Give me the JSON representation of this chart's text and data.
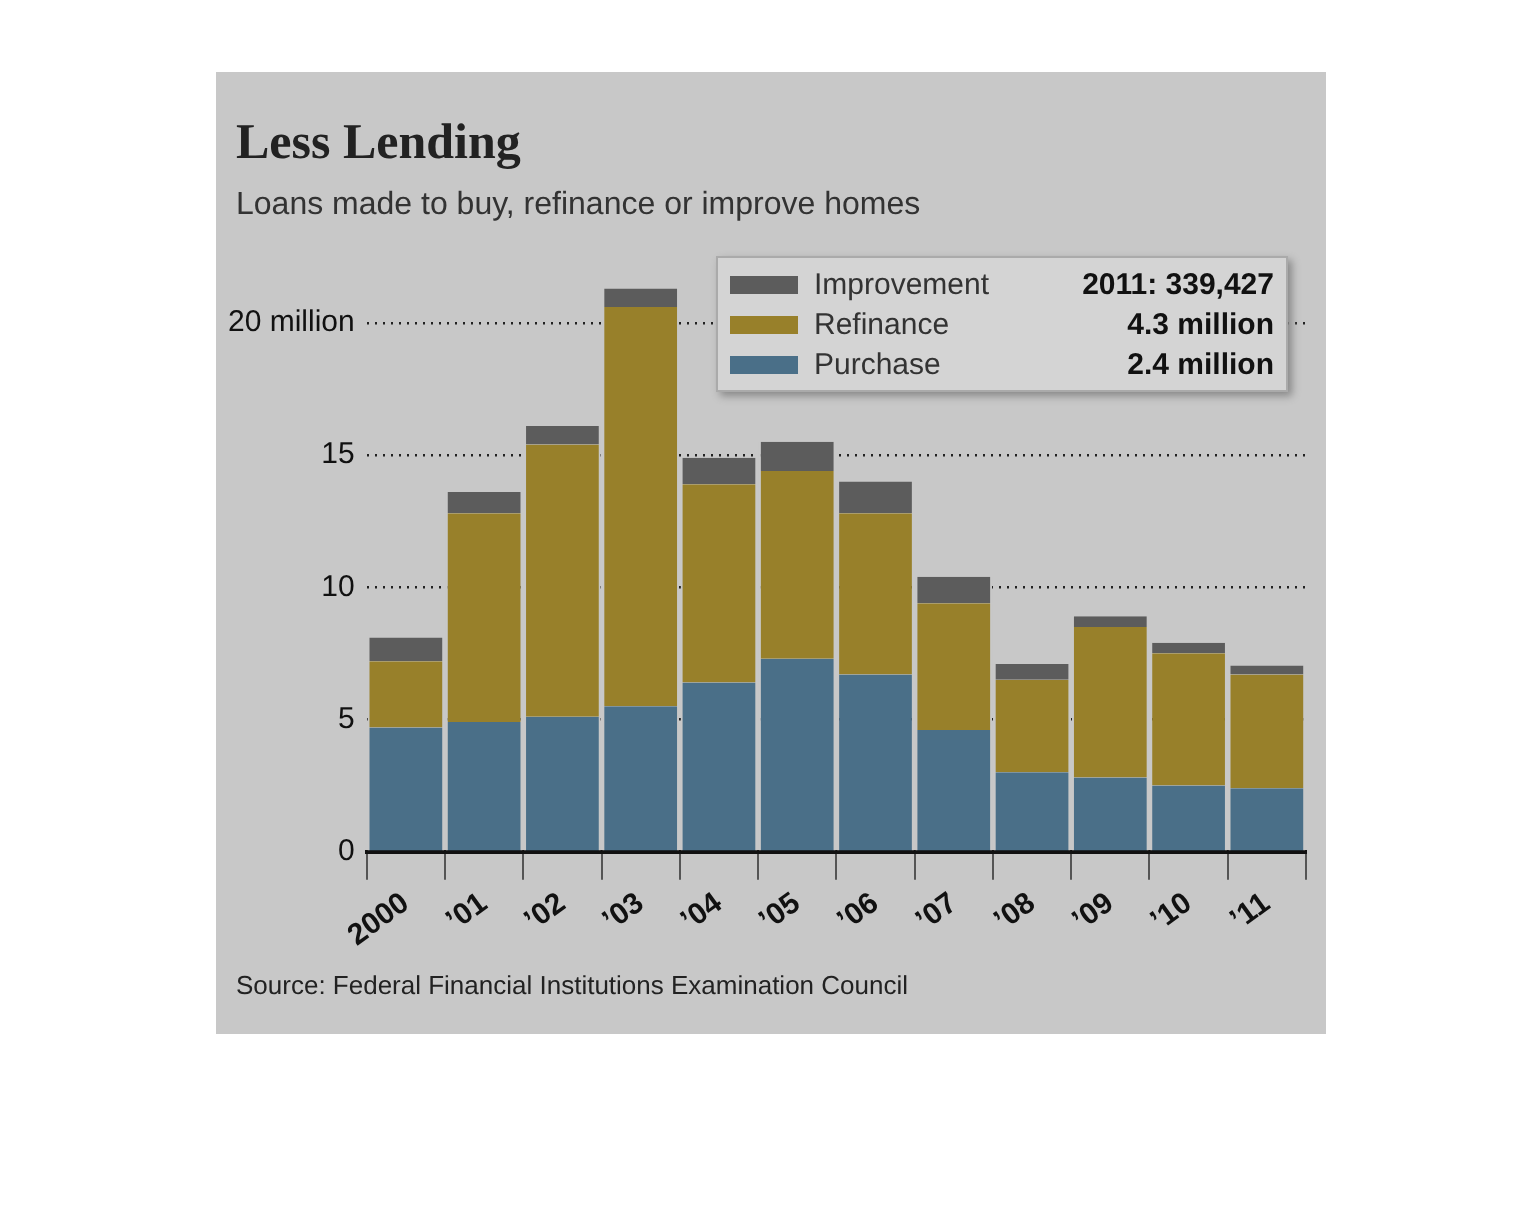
{
  "chart_data": {
    "type": "bar",
    "title": "Less Lending",
    "subtitle": "Loans made to buy, refinance or improve homes",
    "categories": [
      "2000",
      "’01",
      "’02",
      "’03",
      "’04",
      "’05",
      "’06",
      "’07",
      "’08",
      "’09",
      "’10",
      "’11"
    ],
    "series": [
      {
        "name": "Purchase",
        "color": "#4a6f88",
        "values": [
          4.7,
          4.9,
          5.1,
          5.5,
          6.4,
          7.3,
          6.7,
          4.6,
          3.0,
          2.8,
          2.5,
          2.4
        ]
      },
      {
        "name": "Refinance",
        "color": "#98802a",
        "values": [
          2.5,
          7.9,
          10.3,
          15.1,
          7.5,
          7.1,
          6.1,
          4.8,
          3.5,
          5.7,
          5.0,
          4.3
        ]
      },
      {
        "name": "Improvement",
        "color": "#5c5c5c",
        "values": [
          0.9,
          0.8,
          0.7,
          0.7,
          1.0,
          1.1,
          1.2,
          1.0,
          0.6,
          0.4,
          0.4,
          0.339427
        ]
      }
    ],
    "stacked": true,
    "ylim": [
      0,
      22
    ],
    "yticks": [
      0,
      5,
      10,
      15,
      {
        "value": 20,
        "label": "20 million"
      }
    ],
    "grid": "y",
    "line_style": "dotted",
    "legend": "top right",
    "annotations": [
      "2011: 339,427",
      "4.3 million",
      "2.4 million",
      "Source: Federal Financial Institutions Examination Council"
    ]
  }
}
